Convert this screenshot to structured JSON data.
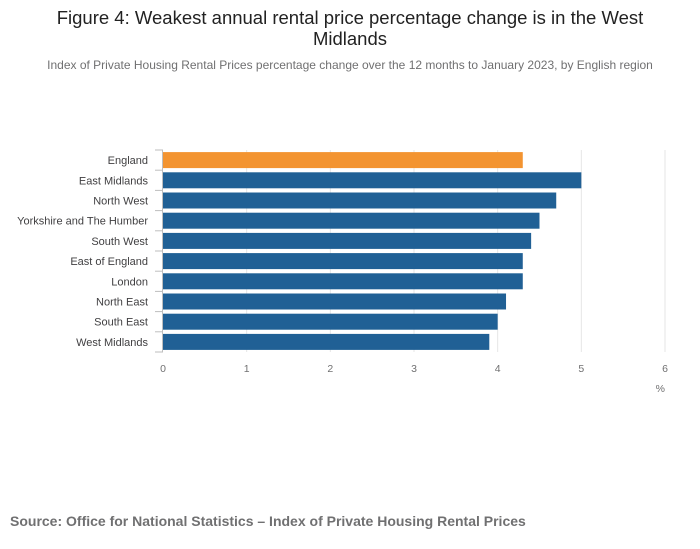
{
  "header": {
    "title": "Figure 4: Weakest annual rental price percentage change is in the West Midlands",
    "subtitle": "Index of Private Housing Rental Prices percentage change over the 12 months to January 2023, by English region"
  },
  "footer": {
    "source": "Source: Office for National Statistics – Index of Private Housing Rental Prices"
  },
  "chart_data": {
    "type": "bar",
    "orientation": "horizontal",
    "categories": [
      "England",
      "East Midlands",
      "North West",
      "Yorkshire and The Humber",
      "South West",
      "East of England",
      "London",
      "North East",
      "South East",
      "West Midlands"
    ],
    "values": [
      4.3,
      5.0,
      4.7,
      4.5,
      4.4,
      4.3,
      4.3,
      4.1,
      4.0,
      3.9
    ],
    "highlight": "England",
    "colors": {
      "highlight": "#f39431",
      "default": "#206095",
      "grid": "#e6e6e6",
      "axis": "#bebebe"
    },
    "xlabel": "%",
    "xlim": [
      0,
      6
    ],
    "xticks": [
      0,
      1,
      2,
      3,
      4,
      5,
      6
    ],
    "grid": true
  }
}
